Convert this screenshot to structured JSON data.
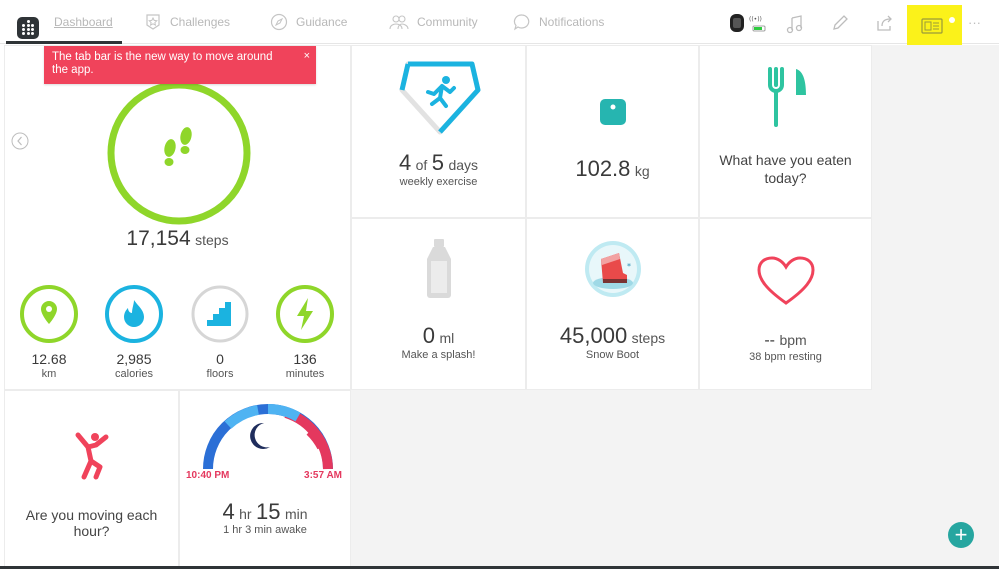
{
  "nav": {
    "tabs": [
      {
        "label": "Dashboard",
        "icon": "fitbit-logo-icon"
      },
      {
        "label": "Challenges",
        "icon": "star-badge-icon"
      },
      {
        "label": "Guidance",
        "icon": "compass-icon"
      },
      {
        "label": "Community",
        "icon": "people-icon"
      },
      {
        "label": "Notifications",
        "icon": "chat-bubble-icon"
      }
    ],
    "right_icons": [
      "tracker-device-icon",
      "music-note-icon",
      "pencil-icon",
      "share-icon",
      "badge-card-icon",
      "more-icon"
    ],
    "more_label": "···"
  },
  "tooltip": {
    "text": "The tab bar is the new way to move around the app.",
    "close": "×"
  },
  "steps": {
    "value": "17,154",
    "unit": "steps"
  },
  "mini_stats": [
    {
      "value": "12.68",
      "label": "km",
      "color": "#8fd62a",
      "icon": "location-pin-icon"
    },
    {
      "value": "2,985",
      "label": "calories",
      "color": "#1bb3e0",
      "icon": "flame-icon"
    },
    {
      "value": "0",
      "label": "floors",
      "color": "#d6d6d6",
      "icon": "stairs-icon"
    },
    {
      "value": "136",
      "label": "minutes",
      "color": "#8fd62a",
      "icon": "lightning-icon"
    }
  ],
  "exercise": {
    "count": "4",
    "of": "of",
    "goal": "5",
    "unit": "days",
    "label": "weekly exercise"
  },
  "weight": {
    "value": "102.8",
    "unit": "kg"
  },
  "food": {
    "question": "What have you eaten today?"
  },
  "water": {
    "value": "0",
    "unit": "ml",
    "label": "Make a splash!"
  },
  "challenge": {
    "value": "45,000",
    "unit": "steps",
    "label": "Snow Boot"
  },
  "heart": {
    "value": "--",
    "unit": "bpm",
    "label": "38 bpm resting"
  },
  "hourly": {
    "question": "Are you moving each hour?"
  },
  "sleep": {
    "start": "10:40 PM",
    "end": "3:57 AM",
    "hours": "4",
    "hr_label": "hr",
    "minutes": "15",
    "min_label": "min",
    "awake": "1 hr 3 min awake"
  },
  "colors": {
    "green": "#8fd62a",
    "teal": "#26a6a0",
    "blue": "#1bb3e0",
    "pink": "#f0435b",
    "highlight": "#fbf21a"
  }
}
